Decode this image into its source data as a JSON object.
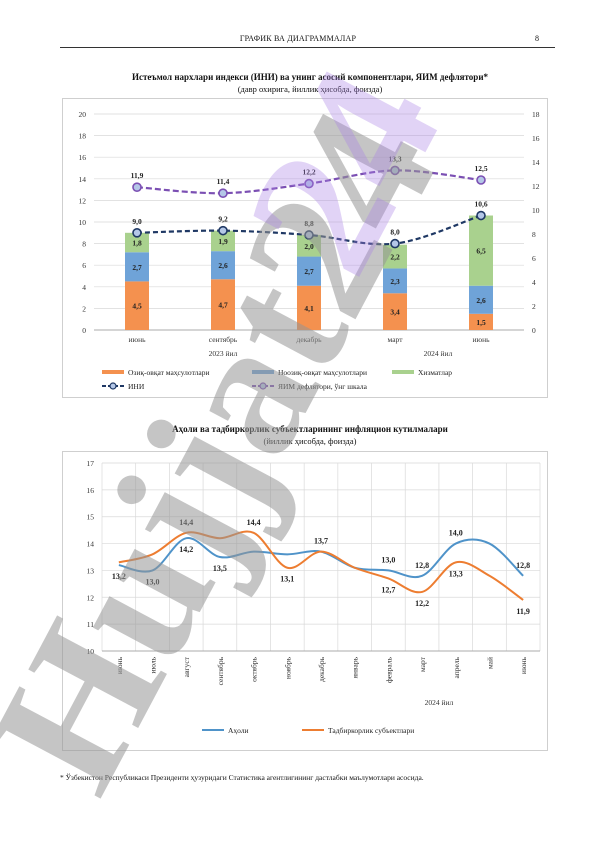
{
  "header": {
    "title": "ГРАФИК ВА ДИАГРАММАЛАР",
    "page_number": "8"
  },
  "chart1_title": "Истеъмол нархлари индекси (ИНИ) ва унинг асосий компонентлари, ЯИМ дефлятори*",
  "chart1_subtitle": "(давр охирига, йиллик ҳисобда, фоизда)",
  "chart2_title": "Аҳоли ва тадбиркорлик субъектларининг инфляцион кутилмалари",
  "chart2_subtitle": "(йиллик ҳисобда, фоизда)",
  "footnote": "* Ўзбекистон Республикаси Президенти ҳузуридаги Статистика агентлигининг дастлабки маълумотлари асосида.",
  "watermark": "Hujjat24",
  "chart_data": [
    {
      "type": "bar",
      "stacked": true,
      "categories": [
        "июнь",
        "сентябрь",
        "декабрь",
        "март",
        "июнь"
      ],
      "group_labels": [
        {
          "label": "2023 йил",
          "from": 0,
          "to": 2
        },
        {
          "label": "2024 йил",
          "from": 3,
          "to": 4
        }
      ],
      "ylim": [
        0,
        20
      ],
      "yticks": [
        0,
        2,
        4,
        6,
        8,
        10,
        12,
        14,
        16,
        18,
        20
      ],
      "y2lim": [
        0,
        18
      ],
      "y2ticks": [
        0,
        2,
        4,
        6,
        8,
        10,
        12,
        14,
        16,
        18
      ],
      "grid": true,
      "legend_position": "bottom",
      "series": [
        {
          "name": "Озиқ-овқат маҳсулотлари",
          "kind": "bar",
          "color": "#f4914f",
          "values": [
            4.5,
            4.7,
            4.1,
            3.4,
            1.5
          ],
          "labels": [
            "4,5",
            "4,7",
            "4,1",
            "3,4",
            "1,5"
          ]
        },
        {
          "name": "Ноозиқ-овқат маҳсулотлари",
          "kind": "bar",
          "color": "#6fa3d8",
          "values": [
            2.7,
            2.6,
            2.7,
            2.3,
            2.6
          ],
          "labels": [
            "2,7",
            "2,6",
            "2,7",
            "2,3",
            "2,6"
          ]
        },
        {
          "name": "Хизматлар",
          "kind": "bar",
          "color": "#a9d18e",
          "values": [
            1.8,
            1.9,
            2.0,
            2.2,
            6.5
          ],
          "labels": [
            "1,8",
            "1,9",
            "2,0",
            "2,2",
            "6,5"
          ]
        },
        {
          "name": "ИНИ",
          "kind": "line",
          "axis": "left",
          "color": "#1f3864",
          "dash": "5,3",
          "values": [
            9.0,
            9.2,
            8.8,
            8.0,
            10.6
          ],
          "labels": [
            "9,0",
            "9,2",
            "8,8",
            "8,0",
            "10,6"
          ]
        },
        {
          "name": "ЯИМ дефлятори, ўнг шкала",
          "kind": "line",
          "axis": "right",
          "color": "#7b4fb3",
          "dash": "6,3",
          "values": [
            11.9,
            11.4,
            12.2,
            13.3,
            12.5
          ],
          "labels": [
            "11,9",
            "11,4",
            "12,2",
            "13,3",
            "12,5"
          ]
        }
      ]
    },
    {
      "type": "line",
      "categories": [
        "июнь",
        "июль",
        "август",
        "сентябрь",
        "октябрь",
        "ноябрь",
        "декабрь",
        "январь",
        "февраль",
        "март",
        "апрель",
        "май",
        "июнь"
      ],
      "group_labels": [
        {
          "label": "2024 йил",
          "from": 7,
          "to": 12
        }
      ],
      "ylim": [
        10,
        17
      ],
      "yticks": [
        10,
        11,
        12,
        13,
        14,
        15,
        16,
        17
      ],
      "grid": true,
      "legend_position": "bottom",
      "series": [
        {
          "name": "Аҳоли",
          "color": "#4f93c9",
          "values": [
            13.2,
            13.0,
            14.2,
            13.5,
            13.7,
            13.6,
            13.7,
            13.1,
            13.0,
            12.8,
            14.0,
            14.0,
            12.8
          ]
        },
        {
          "name": "Тадбиркорлик субъектлари",
          "color": "#ed7d31",
          "values": [
            13.3,
            13.6,
            14.4,
            14.2,
            14.4,
            13.1,
            13.7,
            13.1,
            12.7,
            12.2,
            13.3,
            12.8,
            11.9
          ]
        }
      ],
      "annotations": [
        {
          "text": "13,2",
          "index": 0,
          "value": 13.2,
          "pos": "below"
        },
        {
          "text": "13,0",
          "index": 1,
          "value": 13.0,
          "pos": "below"
        },
        {
          "text": "14,4",
          "index": 2,
          "value": 14.4,
          "pos": "above"
        },
        {
          "text": "14,2",
          "index": 2,
          "value": 14.2,
          "pos": "below"
        },
        {
          "text": "13,5",
          "index": 3,
          "value": 13.5,
          "pos": "below"
        },
        {
          "text": "14,4",
          "index": 4,
          "value": 14.4,
          "pos": "above"
        },
        {
          "text": "13,1",
          "index": 5,
          "value": 13.1,
          "pos": "below"
        },
        {
          "text": "13,7",
          "index": 6,
          "value": 13.7,
          "pos": "above"
        },
        {
          "text": "13,0",
          "index": 8,
          "value": 13.0,
          "pos": "above"
        },
        {
          "text": "12,7",
          "index": 8,
          "value": 12.7,
          "pos": "below"
        },
        {
          "text": "12,8",
          "index": 9,
          "value": 12.8,
          "pos": "above"
        },
        {
          "text": "12,2",
          "index": 9,
          "value": 12.2,
          "pos": "below"
        },
        {
          "text": "14,0",
          "index": 10,
          "value": 14.0,
          "pos": "above"
        },
        {
          "text": "13,3",
          "index": 10,
          "value": 13.3,
          "pos": "below"
        },
        {
          "text": "12,8",
          "index": 12,
          "value": 12.8,
          "pos": "above"
        },
        {
          "text": "11,9",
          "index": 12,
          "value": 11.9,
          "pos": "below"
        }
      ]
    }
  ]
}
